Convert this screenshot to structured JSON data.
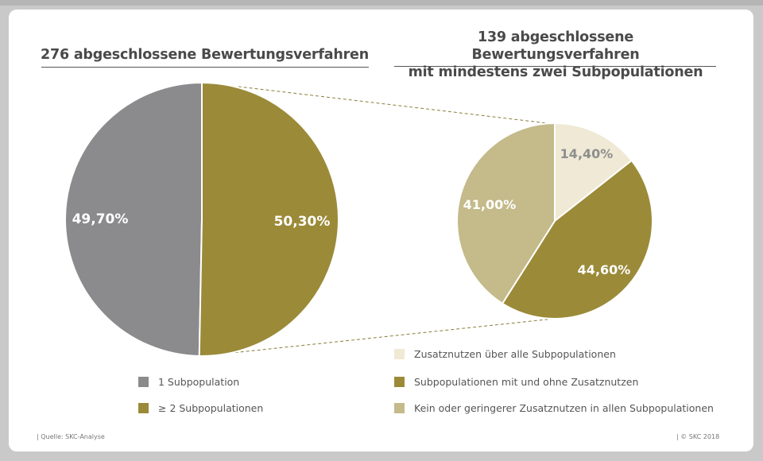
{
  "chart_data": [
    {
      "type": "pie",
      "title": "276 abgeschlossene Bewertungsverfahren",
      "slices": [
        {
          "label": "1 Subpopulation",
          "value": 49.7,
          "value_label": "49,70%",
          "color": "#8b8b8d"
        },
        {
          "label": "≥ 2 Subpopulationen",
          "value": 50.3,
          "value_label": "50,30%",
          "color": "#9b8a38"
        }
      ],
      "legend": "bottom"
    },
    {
      "type": "pie",
      "title_lines": [
        "139 abgeschlossene Bewertungsverfahren",
        "mit mindestens zwei Subpopulationen"
      ],
      "slices": [
        {
          "label": "Zusatznutzen über alle Subpopulationen",
          "value": 14.4,
          "value_label": "14,40%",
          "color": "#efe9d5"
        },
        {
          "label": "Subpopulationen mit und ohne Zusatznutzen",
          "value": 44.6,
          "value_label": "44,60%",
          "color": "#9b8a38"
        },
        {
          "label": "Kein oder geringerer Zusatznutzen in allen Subpopulationen",
          "value": 41.0,
          "value_label": "41,00%",
          "color": "#c4ba8a"
        }
      ],
      "legend": "bottom-right"
    }
  ],
  "footer": {
    "source": "| Quelle: SKC-Analyse",
    "copyright": "|   © SKC 2018"
  }
}
